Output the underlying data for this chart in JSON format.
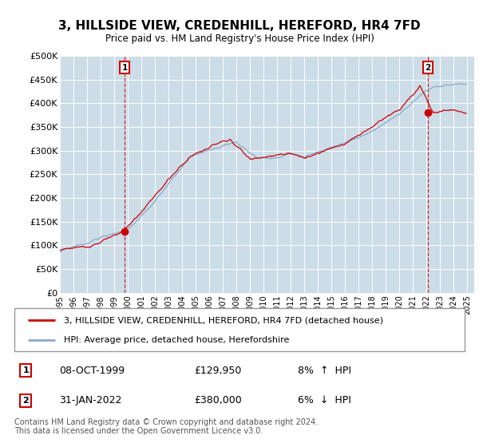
{
  "title": "3, HILLSIDE VIEW, CREDENHILL, HEREFORD, HR4 7FD",
  "subtitle": "Price paid vs. HM Land Registry's House Price Index (HPI)",
  "plot_bg_color": "#ccdde8",
  "ylim": [
    0,
    500000
  ],
  "yticks": [
    0,
    50000,
    100000,
    150000,
    200000,
    250000,
    300000,
    350000,
    400000,
    450000,
    500000
  ],
  "ytick_labels": [
    "£0",
    "£50K",
    "£100K",
    "£150K",
    "£200K",
    "£250K",
    "£300K",
    "£350K",
    "£400K",
    "£450K",
    "£500K"
  ],
  "sale1_year": 1999.77,
  "sale1_price": 129950,
  "sale2_year": 2022.08,
  "sale2_price": 380000,
  "red_line_color": "#cc0000",
  "blue_line_color": "#88aacc",
  "sale1_date_str": "08-OCT-1999",
  "sale1_price_str": "£129,950",
  "sale1_hpi_str": "8%  ↑  HPI",
  "sale2_date_str": "31-JAN-2022",
  "sale2_price_str": "£380,000",
  "sale2_hpi_str": "6%  ↓  HPI",
  "legend_line1": "3, HILLSIDE VIEW, CREDENHILL, HEREFORD, HR4 7FD (detached house)",
  "legend_line2": "HPI: Average price, detached house, Herefordshire",
  "footer_text": "Contains HM Land Registry data © Crown copyright and database right 2024.\nThis data is licensed under the Open Government Licence v3.0."
}
